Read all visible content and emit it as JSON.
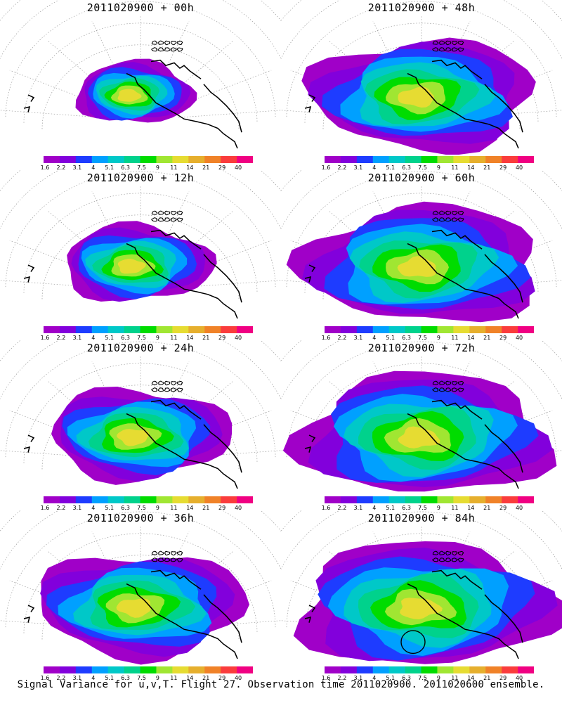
{
  "chart_data": {
    "type": "heatmap",
    "title": "Signal Variance for u,v,T. Flight 27. Observation time 2011020900. 2011020600 ensemble.",
    "colorbar": {
      "ticks": [
        "1.6",
        "2.2",
        "3.1",
        "4",
        "5.1",
        "6.3",
        "7.5",
        "9",
        "11",
        "14",
        "21",
        "29",
        "40"
      ],
      "colors": [
        "#a000c8",
        "#8200dc",
        "#1e3cff",
        "#00a0ff",
        "#00c8c8",
        "#00d28c",
        "#00dc00",
        "#a0e632",
        "#e6dc32",
        "#e6af2d",
        "#f08228",
        "#fa3c3c",
        "#f00082"
      ]
    },
    "panels": [
      {
        "title": "2011020900 + 00h",
        "spread": 0.35,
        "peak": 13,
        "circle": false
      },
      {
        "title": "2011020900 + 12h",
        "spread": 0.5,
        "peak": 11,
        "circle": false
      },
      {
        "title": "2011020900 + 24h",
        "spread": 0.65,
        "peak": 11,
        "circle": false
      },
      {
        "title": "2011020900 + 36h",
        "spread": 0.78,
        "peak": 12,
        "circle": false
      },
      {
        "title": "2011020900 + 48h",
        "spread": 0.85,
        "peak": 12,
        "circle": false
      },
      {
        "title": "2011020900 + 60h",
        "spread": 0.92,
        "peak": 11,
        "circle": false
      },
      {
        "title": "2011020900 + 72h",
        "spread": 0.97,
        "peak": 12,
        "circle": false
      },
      {
        "title": "2011020900 + 84h",
        "spread": 1.0,
        "peak": 12,
        "circle": true
      }
    ]
  }
}
